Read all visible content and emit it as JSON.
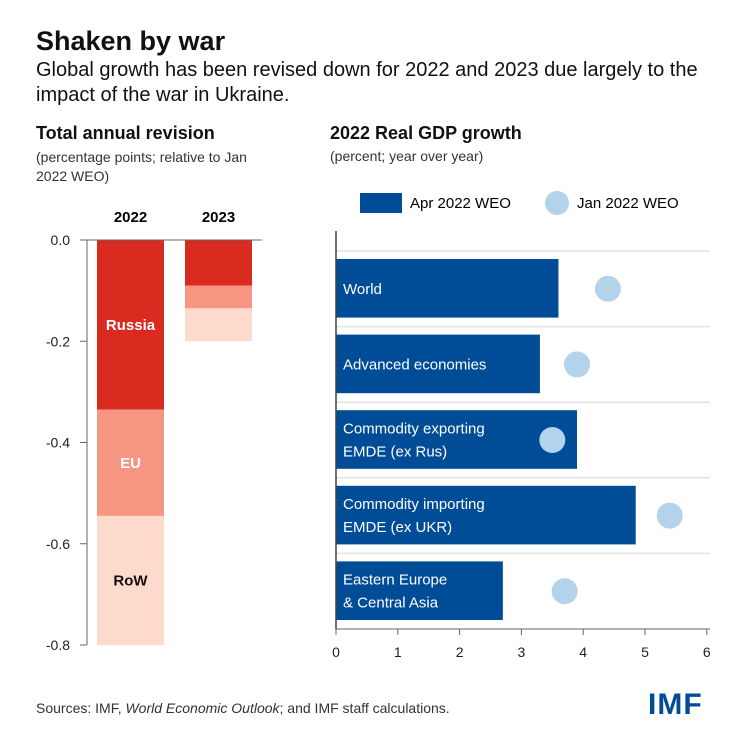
{
  "title": "Shaken by war",
  "subtitle": "Global growth has been revised down for 2022 and 2023 due largely to the impact of the war in Ukraine.",
  "source_prefix": "Sources: IMF, ",
  "source_italic": "World Economic Outlook",
  "source_suffix": "; and IMF staff calculations.",
  "logo": "IMF",
  "colors": {
    "russia": "#d92b1f",
    "eu": "#f59582",
    "row": "#fddacc",
    "apr": "#004c97",
    "jan": "#b3d3ea"
  },
  "chart_data": [
    {
      "type": "bar",
      "stacked": true,
      "title": "Total annual revision",
      "subtitle": "(percentage points; relative to Jan 2022 WEO)",
      "categories": [
        "2022",
        "2023"
      ],
      "series": [
        {
          "name": "Russia",
          "values": [
            -0.335,
            -0.09
          ]
        },
        {
          "name": "EU",
          "values": [
            -0.21,
            -0.045
          ]
        },
        {
          "name": "RoW",
          "values": [
            -0.255,
            -0.065
          ]
        }
      ],
      "ylim": [
        -0.8,
        0
      ],
      "yticks": [
        "0.0",
        "-0.2",
        "-0.4",
        "-0.6",
        "-0.8"
      ]
    },
    {
      "type": "bar",
      "orientation": "horizontal",
      "title": "2022 Real GDP growth",
      "subtitle": "(percent; year over year)",
      "categories": [
        "World",
        "Advanced economies",
        "Commodity exporting EMDE (ex Rus)",
        "Commodity importing EMDE (ex UKR)",
        "Eastern Europe & Central Asia"
      ],
      "category_lines": [
        [
          "World"
        ],
        [
          "Advanced economies"
        ],
        [
          "Commodity exporting",
          "EMDE (ex Rus)"
        ],
        [
          "Commodity importing",
          "EMDE (ex UKR)"
        ],
        [
          "Eastern Europe",
          "& Central Asia"
        ]
      ],
      "series": [
        {
          "name": "Apr 2022 WEO",
          "kind": "bar",
          "values": [
            3.6,
            3.3,
            3.9,
            4.85,
            2.7
          ]
        },
        {
          "name": "Jan 2022 WEO",
          "kind": "dot",
          "values": [
            4.4,
            3.9,
            3.5,
            5.4,
            3.7
          ]
        }
      ],
      "xlim": [
        0,
        6
      ],
      "xticks": [
        "0",
        "1",
        "2",
        "3",
        "4",
        "5",
        "6"
      ],
      "legend": "top"
    }
  ]
}
